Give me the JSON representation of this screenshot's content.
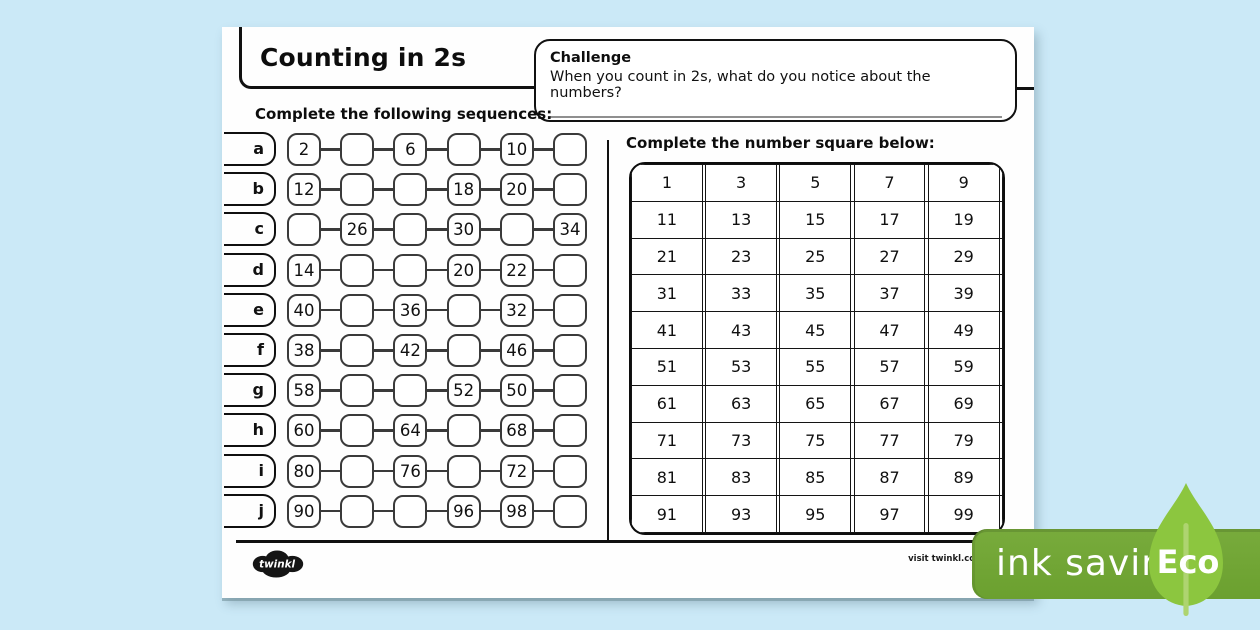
{
  "header": {
    "title": "Counting in 2s"
  },
  "challenge": {
    "label": "Challenge",
    "question": "When you count in 2s, what do  you notice about the numbers?"
  },
  "sequences": {
    "heading": "Complete the following sequences:",
    "rows": [
      {
        "letter": "a",
        "cells": [
          "2",
          "",
          "6",
          "",
          "10",
          ""
        ]
      },
      {
        "letter": "b",
        "cells": [
          "12",
          "",
          "",
          "18",
          "20",
          ""
        ]
      },
      {
        "letter": "c",
        "cells": [
          "",
          "26",
          "",
          "30",
          "",
          "34"
        ]
      },
      {
        "letter": "d",
        "cells": [
          "14",
          "",
          "",
          "20",
          "22",
          ""
        ]
      },
      {
        "letter": "e",
        "cells": [
          "40",
          "",
          "36",
          "",
          "32",
          ""
        ]
      },
      {
        "letter": "f",
        "cells": [
          "38",
          "",
          "42",
          "",
          "46",
          ""
        ]
      },
      {
        "letter": "g",
        "cells": [
          "58",
          "",
          "",
          "52",
          "50",
          ""
        ]
      },
      {
        "letter": "h",
        "cells": [
          "60",
          "",
          "64",
          "",
          "68",
          ""
        ]
      },
      {
        "letter": "i",
        "cells": [
          "80",
          "",
          "76",
          "",
          "72",
          ""
        ]
      },
      {
        "letter": "j",
        "cells": [
          "90",
          "",
          "",
          "96",
          "98",
          ""
        ]
      }
    ]
  },
  "number_square": {
    "heading": "Complete the number square below:",
    "rows": [
      [
        "1",
        "",
        "3",
        "",
        "5",
        "",
        "7",
        "",
        "9",
        ""
      ],
      [
        "11",
        "",
        "13",
        "",
        "15",
        "",
        "17",
        "",
        "19",
        ""
      ],
      [
        "21",
        "",
        "23",
        "",
        "25",
        "",
        "27",
        "",
        "29",
        ""
      ],
      [
        "31",
        "",
        "33",
        "",
        "35",
        "",
        "37",
        "",
        "39",
        ""
      ],
      [
        "41",
        "",
        "43",
        "",
        "45",
        "",
        "47",
        "",
        "49",
        ""
      ],
      [
        "51",
        "",
        "53",
        "",
        "55",
        "",
        "57",
        "",
        "59",
        ""
      ],
      [
        "61",
        "",
        "63",
        "",
        "65",
        "",
        "67",
        "",
        "69",
        ""
      ],
      [
        "71",
        "",
        "73",
        "",
        "75",
        "",
        "77",
        "",
        "79",
        ""
      ],
      [
        "81",
        "",
        "83",
        "",
        "85",
        "",
        "87",
        "",
        "89",
        ""
      ],
      [
        "91",
        "",
        "93",
        "",
        "95",
        "",
        "97",
        "",
        "99",
        ""
      ]
    ]
  },
  "footer": {
    "logo_text": "twinkl",
    "visit_text": "visit twinkl.com"
  },
  "eco_badge": {
    "label": "ink saving",
    "eco_label": "Eco",
    "badge_color": "#6ba02f",
    "leaf_color": "#8cc63f",
    "background_color": "#cbe9f7"
  }
}
